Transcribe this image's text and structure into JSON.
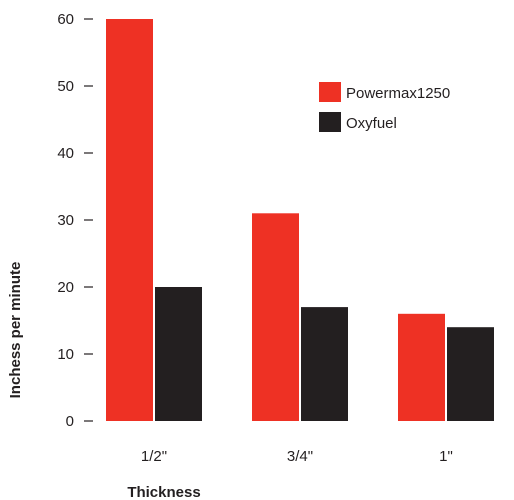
{
  "chart_data": {
    "type": "bar",
    "title": "",
    "xlabel": "Thickness",
    "ylabel": "Inchess per minute",
    "categories": [
      "1/2\"",
      "3/4\"",
      "1\""
    ],
    "series": [
      {
        "name": "Powermax1250",
        "color": "#ee3124",
        "values": [
          60,
          31,
          16
        ]
      },
      {
        "name": "Oxyfuel",
        "color": "#231f20",
        "values": [
          20,
          17,
          14
        ]
      }
    ],
    "ylim": [
      0,
      60
    ],
    "yticks": [
      0,
      10,
      20,
      30,
      40,
      50,
      60
    ],
    "grid": false,
    "legend_position": "top-right"
  }
}
